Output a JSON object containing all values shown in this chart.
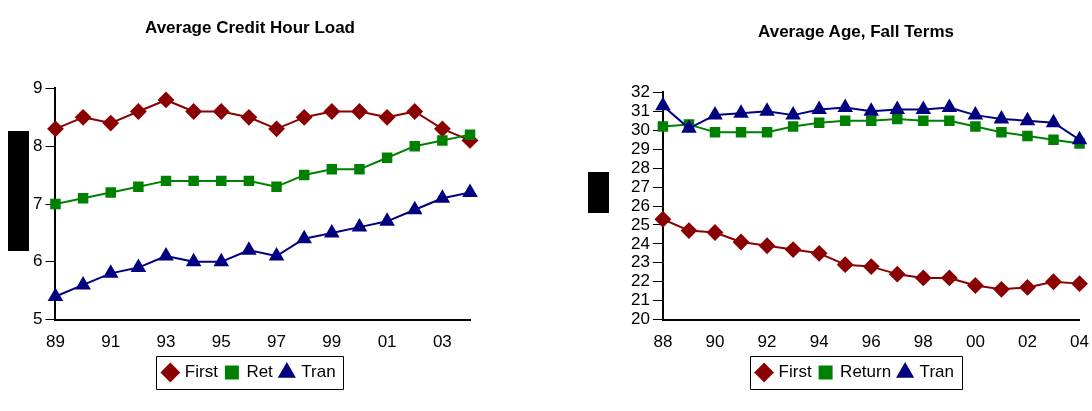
{
  "chart_data": [
    {
      "type": "line",
      "title": "Average Credit Hour Load",
      "categories": [
        "89",
        null,
        "91",
        null,
        "93",
        null,
        "95",
        null,
        "97",
        null,
        "99",
        null,
        "01",
        null,
        "03",
        null
      ],
      "ylim": [
        5,
        9
      ],
      "yticks": [
        5,
        6,
        7,
        8,
        9
      ],
      "grid": false,
      "legend": "bottom",
      "series": [
        {
          "name": "First",
          "color": "#8b0000",
          "marker": "diamond",
          "values": [
            8.3,
            8.5,
            8.4,
            8.6,
            8.8,
            8.6,
            8.6,
            8.5,
            8.3,
            8.5,
            8.6,
            8.6,
            8.5,
            8.6,
            8.3,
            8.1
          ]
        },
        {
          "name": "Ret",
          "color": "#008000",
          "marker": "square",
          "values": [
            7.0,
            7.1,
            7.2,
            7.3,
            7.4,
            7.4,
            7.4,
            7.4,
            7.3,
            7.5,
            7.6,
            7.6,
            7.8,
            8.0,
            8.1,
            8.2
          ]
        },
        {
          "name": "Tran",
          "color": "#000080",
          "marker": "triangle",
          "values": [
            5.4,
            5.6,
            5.8,
            5.9,
            6.1,
            6.0,
            6.0,
            6.2,
            6.1,
            6.4,
            6.5,
            6.6,
            6.7,
            6.9,
            7.1,
            7.2
          ]
        }
      ]
    },
    {
      "type": "line",
      "title": "Average Age, Fall Terms",
      "categories": [
        "88",
        null,
        "90",
        null,
        "92",
        null,
        "94",
        null,
        "96",
        null,
        "98",
        null,
        "00",
        null,
        "02",
        null,
        "04"
      ],
      "ylim": [
        20,
        32
      ],
      "yticks": [
        20,
        21,
        22,
        23,
        24,
        25,
        26,
        27,
        28,
        29,
        30,
        31,
        32
      ],
      "grid": false,
      "legend": "bottom",
      "series": [
        {
          "name": "First",
          "color": "#8b0000",
          "marker": "diamond",
          "values": [
            25.3,
            24.7,
            24.6,
            24.1,
            23.9,
            23.7,
            23.5,
            22.9,
            22.8,
            22.4,
            22.2,
            22.2,
            21.8,
            21.6,
            21.7,
            22.0,
            21.9
          ]
        },
        {
          "name": "Return",
          "color": "#008000",
          "marker": "square",
          "values": [
            30.2,
            30.3,
            29.9,
            29.9,
            29.9,
            30.2,
            30.4,
            30.5,
            30.5,
            30.6,
            30.5,
            30.5,
            30.2,
            29.9,
            29.7,
            29.5,
            29.3
          ]
        },
        {
          "name": "Tran",
          "color": "#000080",
          "marker": "triangle",
          "values": [
            31.3,
            30.1,
            30.8,
            30.9,
            31.0,
            30.8,
            31.1,
            31.2,
            31.0,
            31.1,
            31.1,
            31.2,
            30.8,
            30.6,
            30.5,
            30.4,
            29.5
          ]
        }
      ]
    }
  ]
}
